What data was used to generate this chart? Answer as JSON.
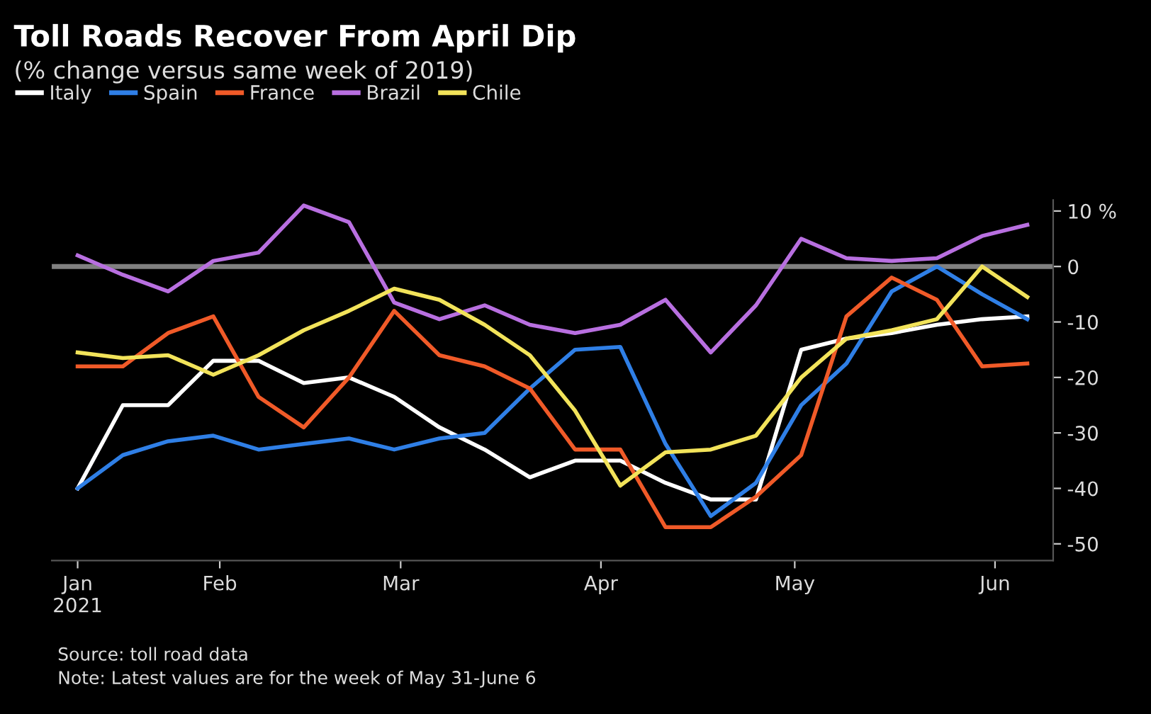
{
  "chart_data": {
    "type": "line",
    "title": "Toll Roads Recover From April Dip",
    "subtitle": "(% change versus same week of 2019)",
    "x": [
      "2021-01-10",
      "2021-01-17",
      "2021-01-24",
      "2021-01-31",
      "2021-02-07",
      "2021-02-14",
      "2021-02-21",
      "2021-02-28",
      "2021-03-07",
      "2021-03-14",
      "2021-03-21",
      "2021-03-28",
      "2021-04-04",
      "2021-04-11",
      "2021-04-18",
      "2021-04-25",
      "2021-05-02",
      "2021-05-09",
      "2021-05-16",
      "2021-05-23",
      "2021-05-30",
      "2021-06-06"
    ],
    "series": [
      {
        "name": "Italy",
        "color": "#ffffff",
        "values": [
          -40,
          -25,
          -25,
          -17,
          -17,
          -21,
          -20,
          -23.5,
          -29,
          -33,
          -38,
          -35,
          -35,
          -39,
          -42,
          -42,
          -15,
          -13,
          -12,
          -10.5,
          -9.5,
          -9
        ]
      },
      {
        "name": "Spain",
        "color": "#2f7fe6",
        "values": [
          -40,
          -34,
          -31.5,
          -30.5,
          -33,
          -32,
          -31,
          -33,
          -31,
          -30,
          -22,
          -15,
          -14.5,
          -32,
          -45,
          -39,
          -25,
          -17.5,
          -4.5,
          0,
          -5,
          -9.5
        ]
      },
      {
        "name": "France",
        "color": "#f05a28",
        "values": [
          -18,
          -18,
          -12,
          -9,
          -23.5,
          -29,
          -20,
          -8,
          -16,
          -18,
          -22,
          -33,
          -33,
          -47,
          -47,
          -41.5,
          -34,
          -9,
          -2,
          -6,
          -18,
          -17.5
        ]
      },
      {
        "name": "Brazil",
        "color": "#b86fe0",
        "values": [
          2,
          -1.5,
          -4.5,
          1,
          2.5,
          11,
          8,
          -6.5,
          -9.5,
          -7,
          -10.5,
          -12,
          -10.5,
          -6,
          -15.5,
          -7,
          5,
          1.5,
          1,
          1.5,
          5.5,
          7.5
        ]
      },
      {
        "name": "Chile",
        "color": "#f2e35a",
        "values": [
          -15.5,
          -16.5,
          -16,
          -19.5,
          -16,
          -11.5,
          -8,
          -4,
          -6,
          -10.5,
          -16,
          -26,
          -39.5,
          -33.5,
          -33,
          -30.5,
          -20,
          -13,
          -11.5,
          -9.5,
          0,
          -5.5
        ]
      }
    ],
    "xlim": [
      "2021-01-06",
      "2021-06-10"
    ],
    "ylim": [
      -53,
      12
    ],
    "xticks": [
      {
        "value": "2021-01-10",
        "label": "Jan\n2021"
      },
      {
        "value": "2021-02-01",
        "label": "Feb"
      },
      {
        "value": "2021-03-01",
        "label": "Mar"
      },
      {
        "value": "2021-04-01",
        "label": "Apr"
      },
      {
        "value": "2021-05-01",
        "label": "May"
      },
      {
        "value": "2021-06-01",
        "label": "Jun"
      }
    ],
    "yticks": [
      {
        "value": 10,
        "label": "10 %"
      },
      0,
      -10,
      -20,
      -30,
      -40,
      -50
    ],
    "ref_lines": [
      {
        "axis": "y",
        "value": 0,
        "color": "#808080"
      }
    ],
    "grid": false,
    "legend": "top left",
    "marker": "none",
    "line_style": "solid",
    "annotations": [
      "Source: toll road data",
      "Note: Latest values are for the week of May 31-June 6"
    ]
  }
}
